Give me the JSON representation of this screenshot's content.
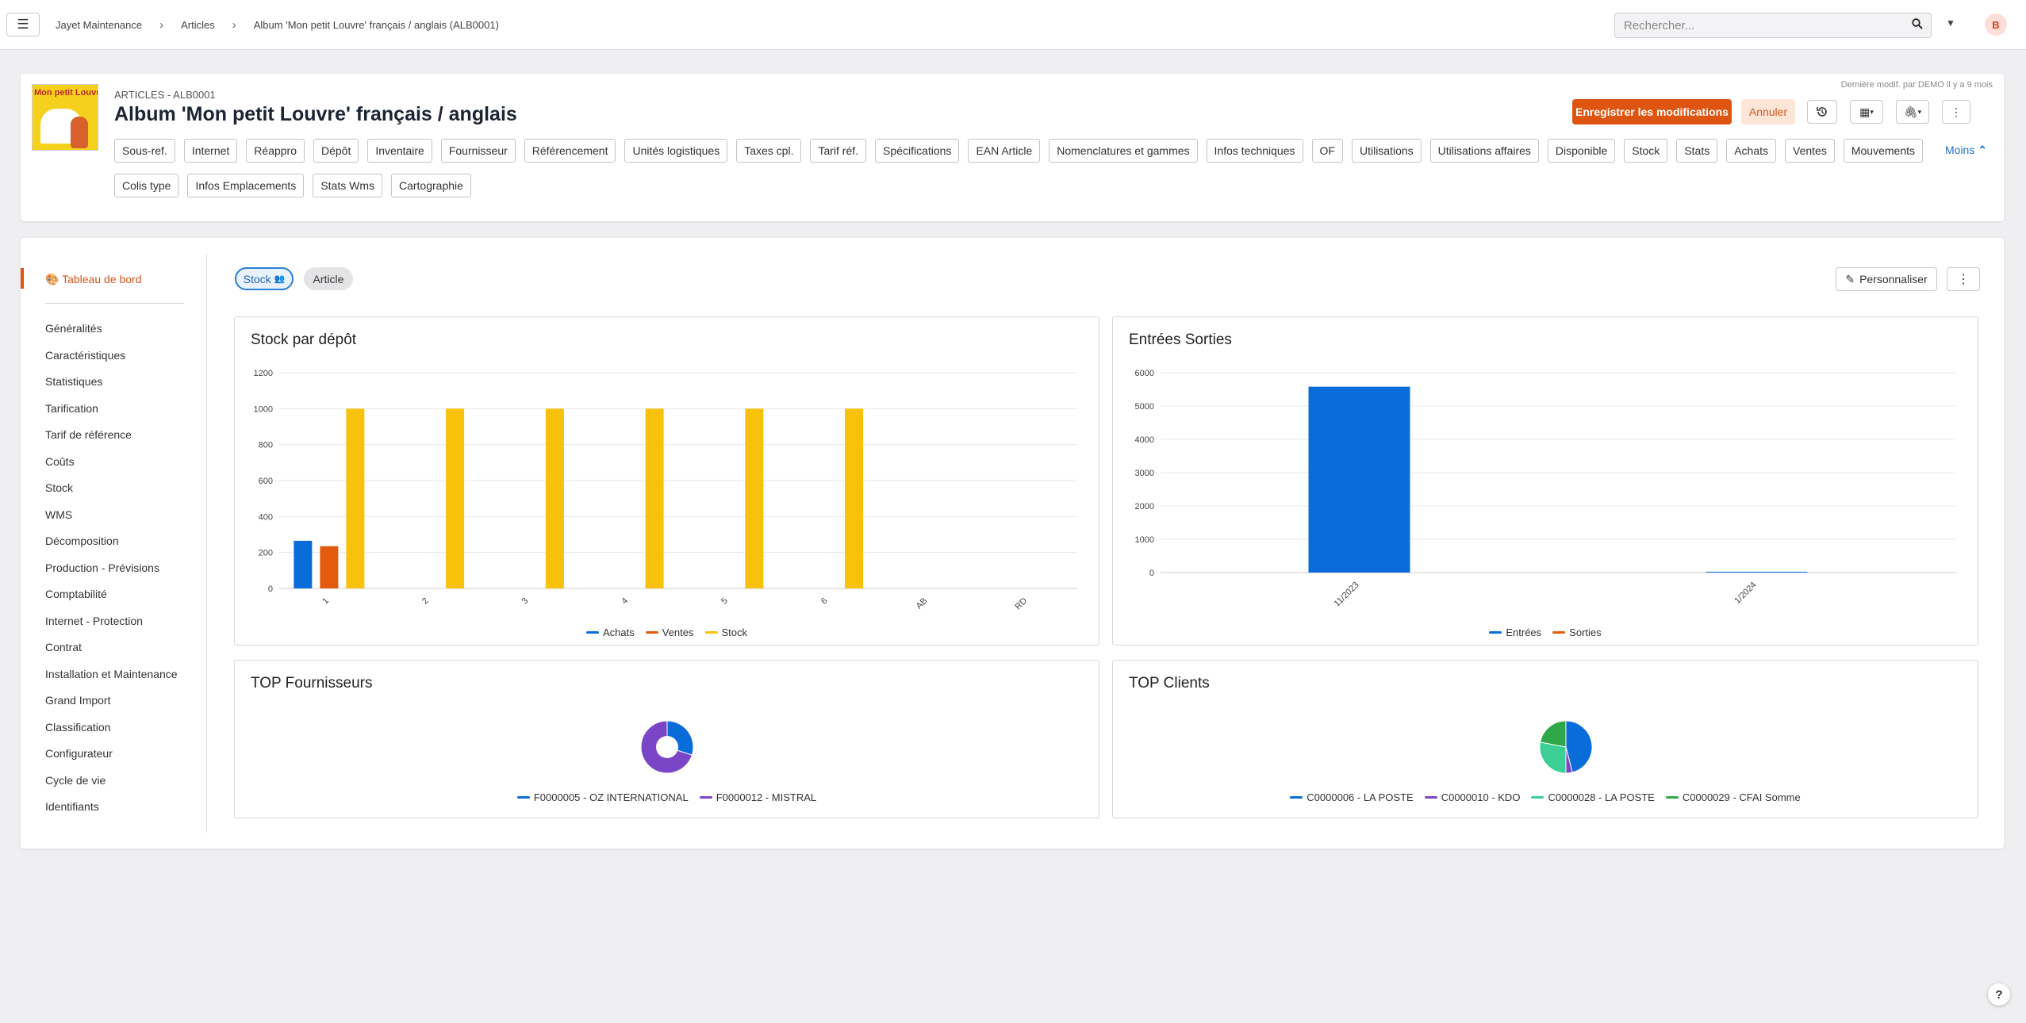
{
  "topbar": {
    "breadcrumbs": [
      "Jayet Maintenance",
      "Articles",
      "Album 'Mon petit Louvre' français / anglais (ALB0001)"
    ],
    "search_placeholder": "Rechercher...",
    "avatar_letter": "B",
    "menu_icon": "hamburger-icon",
    "search_icon": "search-icon"
  },
  "header": {
    "thumbnail_text": "Mon petit Louvre",
    "subtitle": "ARTICLES - ALB0001",
    "title": "Album 'Mon petit Louvre' français / anglais",
    "last_modified": "Dernière modif. par DEMO il y a 9 mois",
    "save_label": "Enregistrer les modifications",
    "cancel_label": "Annuler",
    "less_label": "Moins",
    "tabs": [
      "Sous-ref.",
      "Internet",
      "Réappro",
      "Dépôt",
      "Inventaire",
      "Fournisseur",
      "Référencement",
      "Unités logistiques",
      "Taxes cpl.",
      "Tarif réf.",
      "Spécifications",
      "EAN Article",
      "Nomenclatures et gammes",
      "Infos techniques",
      "OF",
      "Utilisations",
      "Utilisations affaires",
      "Disponible",
      "Stock",
      "Stats",
      "Achats",
      "Ventes",
      "Mouvements",
      "Colis type",
      "Infos Emplacements",
      "Stats Wms",
      "Cartographie"
    ]
  },
  "sidebar": {
    "active": "Tableau de bord",
    "items": [
      "Généralités",
      "Caractéristiques",
      "Statistiques",
      "Tarification",
      "Tarif de référence",
      "Coûts",
      "Stock",
      "WMS",
      "Décomposition",
      "Production - Prévisions",
      "Comptabilité",
      "Internet - Protection",
      "Contrat",
      "Installation et Maintenance",
      "Grand Import",
      "Classification",
      "Configurateur",
      "Cycle de vie",
      "Identifiants"
    ]
  },
  "dashboard": {
    "pill_stock": "Stock",
    "pill_article": "Article",
    "customize_label": "Personnaliser"
  },
  "colors": {
    "accent": "#de5512",
    "blue": "#0a6cd8",
    "orange": "#e25b0e",
    "yellow": "#f8c20c",
    "purple": "#7b45c8",
    "teal": "#3ccf96",
    "green": "#2fa84a"
  },
  "chart_data": [
    {
      "type": "bar",
      "title": "Stock par dépôt",
      "categories": [
        "1",
        "2",
        "3",
        "4",
        "5",
        "6",
        "AB",
        "RD"
      ],
      "series": [
        {
          "name": "Achats",
          "color": "#0a6cd8",
          "values": [
            265,
            0,
            0,
            0,
            0,
            0,
            0,
            0
          ]
        },
        {
          "name": "Ventes",
          "color": "#e25b0e",
          "values": [
            235,
            0,
            0,
            0,
            0,
            0,
            0,
            0
          ]
        },
        {
          "name": "Stock",
          "color": "#f8c20c",
          "values": [
            1000,
            1000,
            1000,
            1000,
            1000,
            1000,
            0,
            0
          ]
        }
      ],
      "ylim": [
        0,
        1200
      ],
      "yticks": [
        0,
        200,
        400,
        600,
        800,
        1000,
        1200
      ],
      "grid": true,
      "legend": "bottom"
    },
    {
      "type": "bar",
      "title": "Entrées Sorties",
      "categories": [
        "11/2023",
        "1/2024"
      ],
      "series": [
        {
          "name": "Entrées",
          "color": "#0a6cd8",
          "values": [
            5580,
            20
          ]
        },
        {
          "name": "Sorties",
          "color": "#e25b0e",
          "values": [
            0,
            0
          ]
        }
      ],
      "ylim": [
        0,
        6000
      ],
      "yticks": [
        0,
        1000,
        2000,
        3000,
        4000,
        5000,
        6000
      ],
      "grid": true,
      "legend": "bottom"
    },
    {
      "type": "pie",
      "title": "TOP Fournisseurs",
      "donut": true,
      "slices": [
        {
          "name": "F0000005 - OZ INTERNATIONAL",
          "color": "#0a6cd8",
          "value": 0.3
        },
        {
          "name": "F0000012 - MISTRAL",
          "color": "#7b45c8",
          "value": 0.7
        }
      ],
      "legend": "bottom"
    },
    {
      "type": "pie",
      "title": "TOP Clients",
      "slices": [
        {
          "name": "C0000006 - LA POSTE",
          "color": "#0a6cd8",
          "value": 0.46
        },
        {
          "name": "C0000010 - KDO",
          "color": "#7b45c8",
          "value": 0.04
        },
        {
          "name": "C0000028 - LA POSTE",
          "color": "#3ccf96",
          "value": 0.28
        },
        {
          "name": "C0000029 - CFAI Somme",
          "color": "#2fa84a",
          "value": 0.22
        }
      ],
      "legend": "bottom"
    }
  ]
}
